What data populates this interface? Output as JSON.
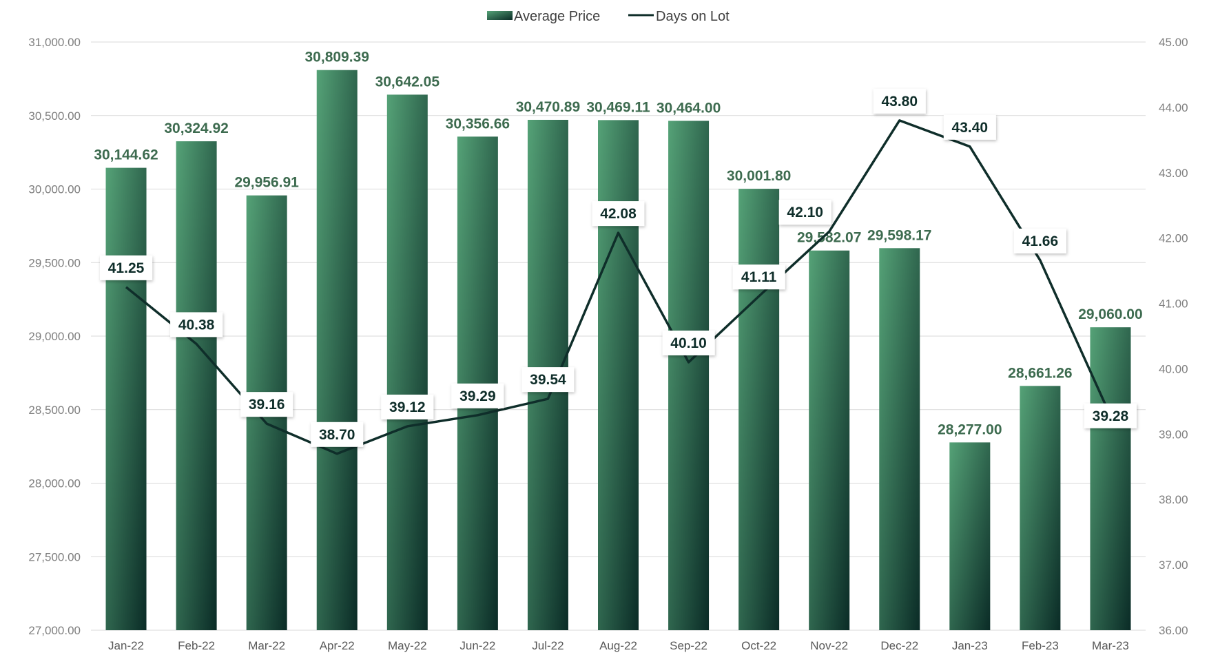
{
  "chart_data": {
    "type": "bar",
    "categories": [
      "Jan-22",
      "Feb-22",
      "Mar-22",
      "Apr-22",
      "May-22",
      "Jun-22",
      "Jul-22",
      "Aug-22",
      "Sep-22",
      "Oct-22",
      "Nov-22",
      "Dec-22",
      "Jan-23",
      "Feb-23",
      "Mar-23"
    ],
    "series": [
      {
        "name": "Average Price",
        "type": "bar",
        "axis": "left",
        "values": [
          30144.62,
          30324.92,
          29956.91,
          30809.39,
          30642.05,
          30356.66,
          30470.89,
          30469.11,
          30464.0,
          30001.8,
          29582.07,
          29598.17,
          28277.0,
          28661.26,
          29060.0
        ],
        "labels": [
          "30,144.62",
          "30,324.92",
          "29,956.91",
          "30,809.39",
          "30,642.05",
          "30,356.66",
          "30,470.89",
          "30,469.11",
          "30,464.00",
          "30,001.80",
          "29,582.07",
          "29,598.17",
          "28,277.00",
          "28,661.26",
          "29,060.00"
        ]
      },
      {
        "name": "Days on Lot",
        "type": "line",
        "axis": "right",
        "values": [
          41.25,
          40.38,
          39.16,
          38.7,
          39.12,
          39.29,
          39.54,
          42.08,
          40.1,
          41.11,
          42.1,
          43.8,
          43.4,
          41.66,
          39.28
        ],
        "labels": [
          "41.25",
          "40.38",
          "39.16",
          "38.70",
          "39.12",
          "39.29",
          "39.54",
          "42.08",
          "40.10",
          "41.11",
          "42.10",
          "43.80",
          "43.40",
          "41.66",
          "39.28"
        ]
      }
    ],
    "left_axis": {
      "ylim": [
        27000,
        31000
      ],
      "ticks": [
        "27,000.00",
        "27,500.00",
        "28,000.00",
        "28,500.00",
        "29,000.00",
        "29,500.00",
        "30,000.00",
        "30,500.00",
        "31,000.00"
      ]
    },
    "right_axis": {
      "ylim": [
        36,
        45
      ],
      "ticks": [
        "36.00",
        "37.00",
        "38.00",
        "39.00",
        "40.00",
        "41.00",
        "42.00",
        "43.00",
        "44.00",
        "45.00"
      ]
    },
    "grid": true,
    "legend": "top-center",
    "colors": {
      "bar_top": "#55a277",
      "bar_bottom": "#0a2b26",
      "line": "#0f2e2a",
      "grid": "#d9d9d9",
      "bar_label": "#3d6b4f",
      "line_label": "#0f2e2a"
    }
  }
}
